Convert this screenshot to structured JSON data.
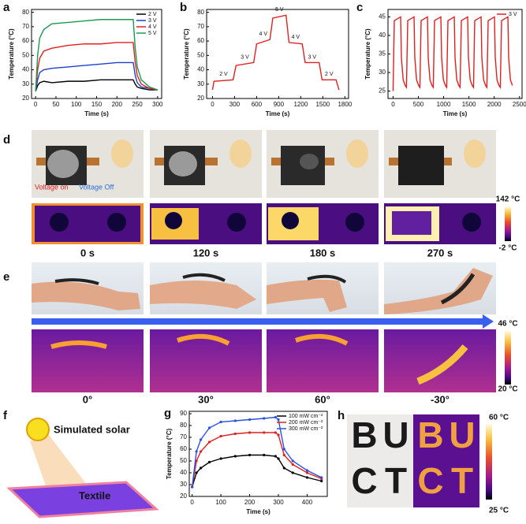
{
  "chart_data": [
    {
      "type": "line",
      "panel": "a",
      "xlabel": "Time (s)",
      "ylabel": "Temperature (°C)",
      "x": [
        0,
        5,
        10,
        20,
        40,
        80,
        120,
        160,
        200,
        240,
        245,
        250,
        260,
        280,
        300
      ],
      "series": [
        {
          "name": "2 V",
          "color": "#000000",
          "values": [
            25,
            29,
            31,
            32,
            31,
            32,
            32,
            33,
            33,
            33,
            30,
            28,
            27,
            26,
            26
          ]
        },
        {
          "name": "3 V",
          "color": "#1f3fd0",
          "values": [
            25,
            33,
            38,
            40,
            41,
            42,
            43,
            44,
            45,
            45,
            36,
            31,
            28,
            27,
            26
          ]
        },
        {
          "name": "4 V",
          "color": "#e02020",
          "values": [
            25,
            40,
            48,
            53,
            55,
            57,
            58,
            58,
            59,
            59,
            45,
            36,
            30,
            27,
            26
          ]
        },
        {
          "name": "5 V",
          "color": "#1a9a50",
          "values": [
            25,
            50,
            62,
            68,
            72,
            73,
            74,
            75,
            75,
            75,
            55,
            42,
            33,
            28,
            26
          ]
        }
      ],
      "xlim": [
        -10,
        310
      ],
      "xticks": [
        0,
        50,
        100,
        150,
        200,
        250,
        300
      ],
      "ylim": [
        20,
        82
      ],
      "yticks": [
        20,
        30,
        40,
        50,
        60,
        70,
        80
      ],
      "legend": "upper right"
    },
    {
      "type": "line",
      "panel": "b",
      "xlabel": "Time (s)",
      "ylabel": "Temperature (°C)",
      "x": [
        0,
        20,
        280,
        320,
        560,
        600,
        780,
        820,
        1000,
        1040,
        1220,
        1260,
        1450,
        1490,
        1680,
        1720
      ],
      "series": [
        {
          "color": "#e02020",
          "values": [
            26,
            32,
            33,
            43,
            45,
            58,
            61,
            76,
            78,
            59,
            58,
            45,
            45,
            33,
            33,
            26
          ]
        }
      ],
      "annotations": [
        "2 V",
        "3 V",
        "4 V",
        "5 V",
        "4 V",
        "3 V",
        "2 V"
      ],
      "xlim": [
        -80,
        1850
      ],
      "xticks": [
        0,
        300,
        600,
        900,
        1200,
        1500,
        1800
      ],
      "ylim": [
        20,
        82
      ],
      "yticks": [
        20,
        30,
        40,
        50,
        60,
        70,
        80
      ]
    },
    {
      "type": "line",
      "panel": "c",
      "xlabel": "Time (s)",
      "ylabel": "Temperature (°C)",
      "x": [
        0,
        25,
        150,
        165,
        200,
        240,
        265,
        290,
        415,
        430,
        465,
        505,
        530,
        555,
        680,
        695,
        730,
        770,
        795,
        820,
        945,
        960,
        995,
        1035,
        1060,
        1085,
        1210,
        1225,
        1260,
        1300,
        1325,
        1350,
        1475,
        1490,
        1525,
        1565,
        1590,
        1615,
        1740,
        1755,
        1790,
        1830,
        1855,
        1880,
        2005,
        2020,
        2055,
        2095,
        2120,
        2145,
        2270,
        2285,
        2320,
        2360
      ],
      "series": [
        {
          "name": "3 V",
          "color": "#e02020",
          "values": [
            25,
            44,
            45,
            34,
            28,
            26.5,
            26,
            44,
            45,
            34,
            28,
            26.5,
            26,
            44,
            45,
            34,
            28,
            26.5,
            26,
            44,
            45,
            34,
            28,
            26.5,
            26,
            44,
            45,
            34,
            28,
            26.5,
            26,
            44,
            45,
            34,
            28,
            26.5,
            26,
            44,
            45,
            34,
            28,
            26.5,
            26,
            44,
            45,
            34,
            28,
            26.5,
            26,
            44,
            45,
            34,
            28,
            26.5
          ]
        }
      ],
      "xlim": [
        -100,
        2550
      ],
      "xticks": [
        0,
        500,
        1000,
        1500,
        2000,
        2500
      ],
      "ylim": [
        23,
        47
      ],
      "yticks": [
        25,
        30,
        35,
        40,
        45
      ],
      "legend": "upper right"
    },
    {
      "type": "line",
      "panel": "g",
      "xlabel": "Time (s)",
      "ylabel": "Temperature (°C)",
      "markers": true,
      "x": [
        0,
        15,
        30,
        60,
        100,
        150,
        200,
        250,
        290,
        300,
        320,
        350,
        400,
        450
      ],
      "series": [
        {
          "name": "100 mW cm⁻²",
          "color": "#000000",
          "values": [
            28,
            40,
            44,
            49,
            52,
            54,
            55,
            55,
            54,
            52,
            44,
            40,
            36,
            33
          ]
        },
        {
          "name": "200 mW cm⁻²",
          "color": "#e02020",
          "values": [
            28,
            50,
            58,
            66,
            71,
            73,
            74,
            74,
            74,
            72,
            55,
            47,
            40,
            35
          ]
        },
        {
          "name": "300 mW cm⁻²",
          "color": "#2b50e0",
          "values": [
            28,
            58,
            68,
            78,
            83,
            84,
            85,
            86,
            87,
            85,
            60,
            50,
            42,
            36
          ]
        }
      ],
      "xlim": [
        -10,
        470
      ],
      "xticks": [
        0,
        100,
        200,
        300,
        400
      ],
      "ylim": [
        20,
        92
      ],
      "yticks": [
        20,
        30,
        40,
        50,
        60,
        70,
        80,
        90
      ],
      "legend": "upper right"
    }
  ],
  "d": {
    "label": "d",
    "voltage_on": "Voltage on",
    "voltage_off": "Voltage Off",
    "scale_max": "142 °C",
    "scale_min": "-2 °C",
    "times": [
      "0 s",
      "120 s",
      "180 s",
      "270 s"
    ]
  },
  "e": {
    "label": "e",
    "scale_max": "46 °C",
    "scale_min": "20 °C",
    "angles": [
      "0°",
      "30°",
      "60°",
      "-30°"
    ]
  },
  "f": {
    "label": "f",
    "light": "Simulated solar",
    "sample": "Textile"
  },
  "h": {
    "label": "h",
    "scale_max": "60 °C",
    "scale_min": "25 °C",
    "letters": [
      "B",
      "U",
      "C",
      "T"
    ]
  }
}
